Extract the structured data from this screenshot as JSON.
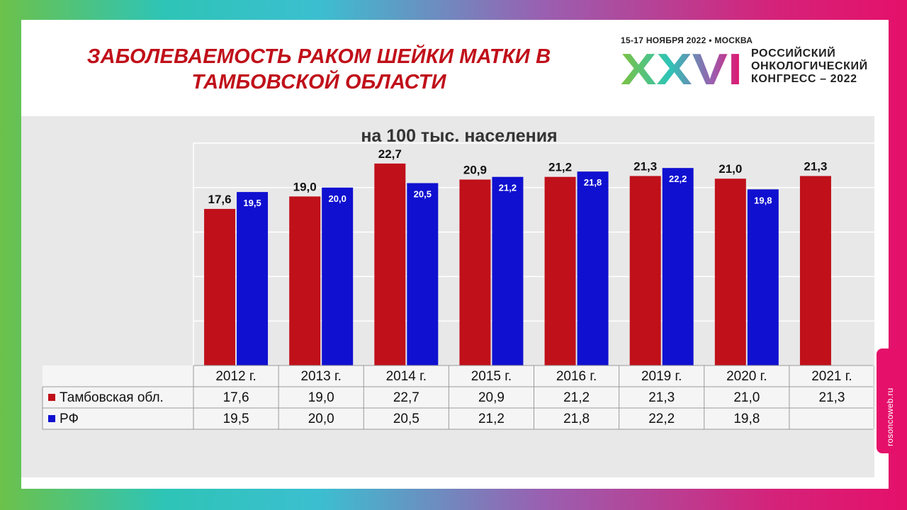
{
  "slide": {
    "title_line1": "ЗАБОЛЕВАЕМОСТЬ РАКОМ ШЕЙКИ МАТКИ В",
    "title_line2": "ТАМБОВСКОЙ ОБЛАСТИ"
  },
  "logo": {
    "date": "15-17 НОЯБРЯ 2022 • МОСКВА",
    "roman": "XXVI",
    "line1": "РОССИЙСКИЙ",
    "line2": "ОНКОЛОГИЧЕСКИЙ",
    "line3": "КОНГРЕСС – 2022"
  },
  "side_tab": {
    "text": "rosoncoweb.ru"
  },
  "colors": {
    "tambov": "#c0101a",
    "rf": "#1010d0",
    "chart_bg": "#e8e8e8",
    "title": "#c0101a"
  },
  "chart_data": {
    "type": "bar",
    "title": "на 100 тыс. населения",
    "categories": [
      "2012 г.",
      "2013 г.",
      "2014 г.",
      "2015 г.",
      "2016 г.",
      "2019 г.",
      "2020 г.",
      "2021 г."
    ],
    "series": [
      {
        "name": "Тамбовская обл.",
        "values": [
          17.6,
          19.0,
          22.7,
          20.9,
          21.2,
          21.3,
          21.0,
          21.3
        ],
        "labels": [
          "17,6",
          "19,0",
          "22,7",
          "20,9",
          "21,2",
          "21,3",
          "21,0",
          "21,3"
        ]
      },
      {
        "name": "РФ",
        "values": [
          19.5,
          20.0,
          20.5,
          21.2,
          21.8,
          22.2,
          19.8,
          null
        ],
        "labels": [
          "19,5",
          "20,0",
          "20,5",
          "21,2",
          "21,8",
          "22,2",
          "19,8",
          ""
        ]
      }
    ],
    "ylim": [
      0,
      25
    ],
    "grid": true,
    "legend": "data-table"
  }
}
